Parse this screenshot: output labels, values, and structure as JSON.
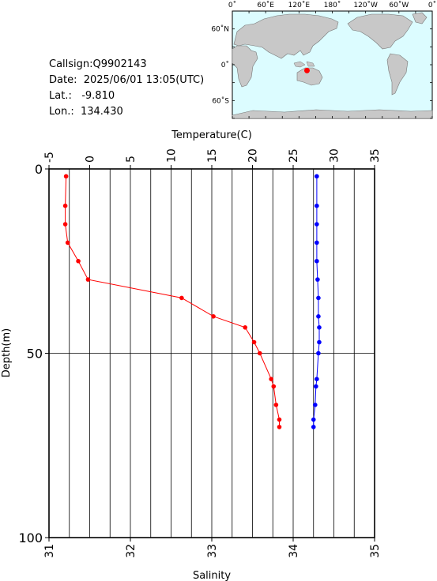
{
  "info": {
    "callsign": "Callsign:Q9902143",
    "date": "Date:  2025/06/01 13:05(UTC)",
    "lat": "Lat.:   -9.810",
    "lon": "Lon.:  134.430"
  },
  "map": {
    "top_labels": [
      "0˚",
      "60˚E",
      "120˚E",
      "180˚",
      "120˚W",
      "60˚W",
      "0˚"
    ],
    "left_labels": [
      "60˚N",
      "0˚",
      "60˚S"
    ],
    "ocean_color": "#dcfcff",
    "land_color": "#c8c8c8",
    "marker": {
      "lon": 134.43,
      "lat": -9.81,
      "color": "#ff0000"
    }
  },
  "chart_data": {
    "type": "line",
    "top_axis": {
      "label": "Temperature(C)",
      "range": [
        -5,
        35
      ],
      "ticks": [
        "-5",
        "0",
        "5",
        "10",
        "15",
        "20",
        "25",
        "30",
        "35"
      ]
    },
    "bottom_axis": {
      "label": "Salinity",
      "range": [
        31,
        35
      ],
      "ticks": [
        "31",
        "32",
        "33",
        "34",
        "35"
      ]
    },
    "y_axis": {
      "label": "Depth(m)",
      "range": [
        0,
        100
      ],
      "inverted": true,
      "ticks": [
        "0",
        "50",
        "100"
      ]
    },
    "grid": true,
    "series": [
      {
        "axis": "temperature",
        "color": "#ff0000",
        "points": [
          {
            "x": -2.9,
            "y": 2
          },
          {
            "x": -3.0,
            "y": 10
          },
          {
            "x": -3.0,
            "y": 15
          },
          {
            "x": -2.7,
            "y": 20
          },
          {
            "x": -1.4,
            "y": 25
          },
          {
            "x": -0.2,
            "y": 30
          },
          {
            "x": 11.3,
            "y": 35
          },
          {
            "x": 15.2,
            "y": 40
          },
          {
            "x": 19.1,
            "y": 43
          },
          {
            "x": 20.2,
            "y": 47
          },
          {
            "x": 20.9,
            "y": 50
          },
          {
            "x": 22.3,
            "y": 57
          },
          {
            "x": 22.6,
            "y": 59
          },
          {
            "x": 22.9,
            "y": 64
          },
          {
            "x": 23.3,
            "y": 68
          },
          {
            "x": 23.3,
            "y": 70
          }
        ]
      },
      {
        "axis": "salinity",
        "color": "#0000ff",
        "points": [
          {
            "x": 34.29,
            "y": 2
          },
          {
            "x": 34.29,
            "y": 10
          },
          {
            "x": 34.29,
            "y": 15
          },
          {
            "x": 34.29,
            "y": 20
          },
          {
            "x": 34.29,
            "y": 25
          },
          {
            "x": 34.3,
            "y": 30
          },
          {
            "x": 34.31,
            "y": 35
          },
          {
            "x": 34.31,
            "y": 40
          },
          {
            "x": 34.32,
            "y": 43
          },
          {
            "x": 34.32,
            "y": 47
          },
          {
            "x": 34.31,
            "y": 50
          },
          {
            "x": 34.29,
            "y": 57
          },
          {
            "x": 34.28,
            "y": 59
          },
          {
            "x": 34.27,
            "y": 64
          },
          {
            "x": 34.25,
            "y": 68
          },
          {
            "x": 34.25,
            "y": 70
          }
        ]
      }
    ]
  }
}
